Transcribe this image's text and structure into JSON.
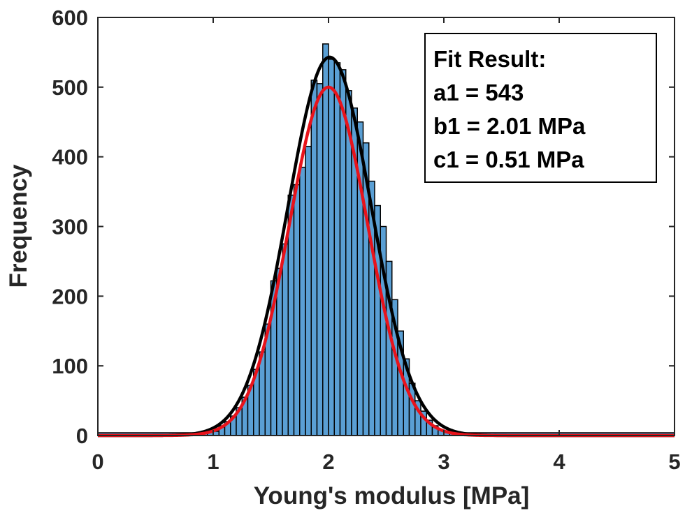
{
  "chart_data": {
    "type": "bar",
    "xlabel": "Young's modulus [MPa]",
    "ylabel": "Frequency",
    "xlim": [
      0,
      5
    ],
    "ylim": [
      0,
      600
    ],
    "x_ticks": [
      "0",
      "1",
      "2",
      "3",
      "4",
      "5"
    ],
    "y_ticks": [
      "0",
      "100",
      "200",
      "300",
      "400",
      "500",
      "600"
    ],
    "grid": false,
    "bin_width": 0.05,
    "bins": [
      {
        "x": 0.95,
        "y": 8
      },
      {
        "x": 1.0,
        "y": 6
      },
      {
        "x": 1.05,
        "y": 14
      },
      {
        "x": 1.1,
        "y": 20
      },
      {
        "x": 1.15,
        "y": 28
      },
      {
        "x": 1.2,
        "y": 40
      },
      {
        "x": 1.25,
        "y": 55
      },
      {
        "x": 1.3,
        "y": 72
      },
      {
        "x": 1.35,
        "y": 95
      },
      {
        "x": 1.4,
        "y": 120
      },
      {
        "x": 1.45,
        "y": 160
      },
      {
        "x": 1.5,
        "y": 222
      },
      {
        "x": 1.55,
        "y": 240
      },
      {
        "x": 1.6,
        "y": 275
      },
      {
        "x": 1.65,
        "y": 345
      },
      {
        "x": 1.7,
        "y": 360
      },
      {
        "x": 1.75,
        "y": 385
      },
      {
        "x": 1.8,
        "y": 415
      },
      {
        "x": 1.85,
        "y": 510
      },
      {
        "x": 1.9,
        "y": 505
      },
      {
        "x": 1.95,
        "y": 562
      },
      {
        "x": 2.0,
        "y": 540
      },
      {
        "x": 2.05,
        "y": 535
      },
      {
        "x": 2.1,
        "y": 525
      },
      {
        "x": 2.15,
        "y": 495
      },
      {
        "x": 2.2,
        "y": 470
      },
      {
        "x": 2.25,
        "y": 450
      },
      {
        "x": 2.3,
        "y": 420
      },
      {
        "x": 2.35,
        "y": 365
      },
      {
        "x": 2.4,
        "y": 330
      },
      {
        "x": 2.45,
        "y": 300
      },
      {
        "x": 2.5,
        "y": 250
      },
      {
        "x": 2.55,
        "y": 195
      },
      {
        "x": 2.6,
        "y": 150
      },
      {
        "x": 2.65,
        "y": 110
      },
      {
        "x": 2.7,
        "y": 75
      },
      {
        "x": 2.75,
        "y": 50
      },
      {
        "x": 2.8,
        "y": 35
      },
      {
        "x": 2.85,
        "y": 22
      },
      {
        "x": 2.9,
        "y": 14
      },
      {
        "x": 2.95,
        "y": 8
      },
      {
        "x": 3.0,
        "y": 5
      },
      {
        "x": 3.05,
        "y": 3
      },
      {
        "x": 3.1,
        "y": 2
      }
    ],
    "fits": [
      {
        "color": "#000000",
        "a": 543,
        "b": 2.01,
        "c": 0.51
      },
      {
        "color": "#e8131b",
        "a": 500,
        "b": 2.0,
        "c": 0.48
      }
    ],
    "bar_color": "#5a9fd4",
    "bar_edge_color": "#000000",
    "legend": {
      "placement": "top-right",
      "lines": [
        "Fit Result:",
        "a1 = 543",
        "b1 = 2.01 MPa",
        "c1 = 0.51 MPa"
      ]
    }
  }
}
